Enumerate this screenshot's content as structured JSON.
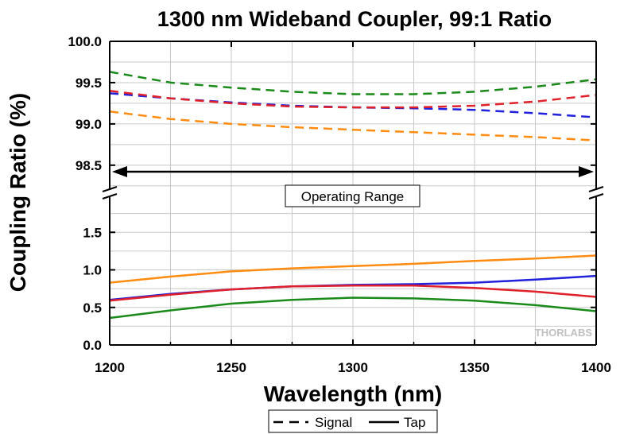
{
  "chart_data": {
    "type": "line",
    "title": "1300 nm Wideband Coupler, 99:1 Ratio",
    "xlabel": "Wavelength (nm)",
    "ylabel": "Coupling Ratio (%)",
    "xlim": [
      1200,
      1400
    ],
    "x_ticks": [
      "1200",
      "1250",
      "1300",
      "1350",
      "1400"
    ],
    "y_upper_ticks": [
      "98.5",
      "99.0",
      "99.5",
      "100.0"
    ],
    "y_lower_ticks": [
      "0.0",
      "0.5",
      "1.0",
      "1.5"
    ],
    "y_upper_range": [
      98.2,
      100.0
    ],
    "y_lower_range": [
      0.0,
      2.0
    ],
    "grid": true,
    "axis_break": true,
    "annotation": "Operating Range",
    "operating_range": [
      1200,
      1400
    ],
    "watermark": "THORLABS",
    "legend": {
      "position": "bottom",
      "entries": [
        {
          "label": "Signal",
          "style": "dashed"
        },
        {
          "label": "Tap",
          "style": "solid"
        }
      ]
    },
    "x": [
      1200,
      1225,
      1250,
      1275,
      1300,
      1325,
      1350,
      1375,
      1400
    ],
    "signal_series": [
      {
        "color": "#1a8a1a",
        "values": [
          99.63,
          99.5,
          99.44,
          99.39,
          99.36,
          99.36,
          99.39,
          99.45,
          99.54
        ]
      },
      {
        "color": "#2020dd",
        "values": [
          99.37,
          99.31,
          99.26,
          99.22,
          99.2,
          99.19,
          99.17,
          99.13,
          99.08
        ]
      },
      {
        "color": "#e0202a",
        "values": [
          99.4,
          99.31,
          99.25,
          99.21,
          99.2,
          99.2,
          99.22,
          99.27,
          99.35
        ]
      },
      {
        "color": "#ff8c10",
        "values": [
          99.15,
          99.06,
          99.0,
          98.96,
          98.93,
          98.9,
          98.87,
          98.84,
          98.8
        ]
      }
    ],
    "tap_series": [
      {
        "color": "#ff8c10",
        "values": [
          0.83,
          0.91,
          0.98,
          1.02,
          1.05,
          1.08,
          1.12,
          1.15,
          1.19
        ]
      },
      {
        "color": "#2020dd",
        "values": [
          0.6,
          0.68,
          0.74,
          0.78,
          0.8,
          0.81,
          0.83,
          0.87,
          0.92
        ]
      },
      {
        "color": "#e0202a",
        "values": [
          0.59,
          0.67,
          0.74,
          0.78,
          0.79,
          0.79,
          0.76,
          0.71,
          0.64
        ]
      },
      {
        "color": "#1a8a1a",
        "values": [
          0.36,
          0.46,
          0.55,
          0.6,
          0.63,
          0.62,
          0.59,
          0.53,
          0.45
        ]
      }
    ]
  }
}
